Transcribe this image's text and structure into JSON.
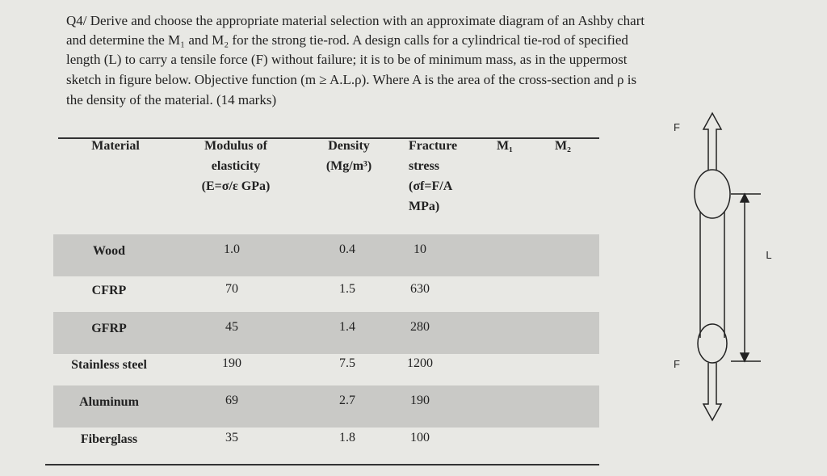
{
  "question": {
    "lines": [
      "Q4/ Derive and choose the appropriate material selection with an approximate diagram of an Ashby chart",
      "and determine the M₁ and M₂ for the strong tie-rod. A design calls for a cylindrical tie-rod of specified",
      "length (L) to carry a tensile force (F) without failure; it is to be of minimum mass, as in the uppermost",
      "sketch in figure below. Objective function (m ≥ A.L.ρ). Where A is the area of the cross-section and ρ is",
      "the density of the material. (14 marks)"
    ]
  },
  "table": {
    "headers": [
      [
        "Material"
      ],
      [
        "Modulus of",
        "elasticity",
        "(E=σ/ε GPa)"
      ],
      [
        "Density",
        "(Mg/m³)"
      ],
      [
        "Fracture",
        "stress",
        "(σf=F/A",
        "MPa)"
      ],
      [
        "M₁"
      ],
      [
        "M₂"
      ]
    ],
    "rows": [
      [
        "Wood",
        "1.0",
        "0.4",
        "10"
      ],
      [
        "CFRP",
        "70",
        "1.5",
        "630"
      ],
      [
        "GFRP",
        "45",
        "1.4",
        "280"
      ],
      [
        "Stainless steel",
        "190",
        "7.5",
        "1200"
      ],
      [
        "Aluminum",
        "69",
        "2.7",
        "190"
      ],
      [
        "Fiberglass",
        "35",
        "1.8",
        "100"
      ]
    ]
  },
  "figure": {
    "force_top": "F",
    "length": "L",
    "force_bottom": "F"
  }
}
